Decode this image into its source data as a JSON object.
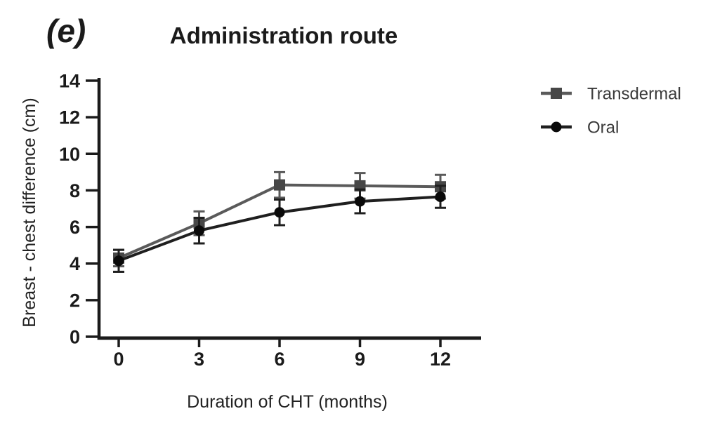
{
  "figure": {
    "panel_label": "(e)",
    "title": "Administration route"
  },
  "chart_data": {
    "type": "line",
    "title": "Administration route",
    "xlabel": "Duration of CHT (months)",
    "ylabel": "Breast - chest difference (cm)",
    "x": [
      0,
      3,
      6,
      9,
      12
    ],
    "xticks": [
      "0",
      "3",
      "6",
      "9",
      "12"
    ],
    "yticks": [
      0,
      2,
      4,
      6,
      8,
      10,
      12,
      14
    ],
    "xlim": [
      -0.8,
      13.5
    ],
    "ylim": [
      0,
      14
    ],
    "grid": false,
    "legend_position": "right",
    "error_bars": "symmetric",
    "series": [
      {
        "name": "Transdermal",
        "marker": "square",
        "line_color": "#5a5a5a",
        "marker_color": "#474747",
        "values": [
          4.3,
          6.2,
          8.3,
          8.25,
          8.2
        ],
        "errors": [
          0.45,
          0.65,
          0.7,
          0.7,
          0.65
        ]
      },
      {
        "name": "Oral",
        "marker": "circle",
        "line_color": "#1f1f1f",
        "marker_color": "#0a0a0a",
        "values": [
          4.15,
          5.8,
          6.8,
          7.4,
          7.65
        ],
        "errors": [
          0.6,
          0.7,
          0.7,
          0.65,
          0.6
        ]
      }
    ],
    "colors": {
      "axis": "#1b1b1b",
      "background": "#ffffff",
      "legend_text": "#3a3a3a"
    }
  }
}
